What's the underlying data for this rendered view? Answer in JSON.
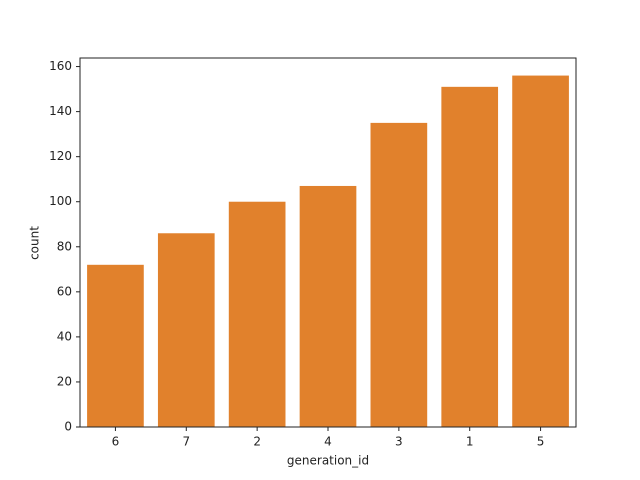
{
  "chart_data": {
    "type": "bar",
    "x_label": "generation_id",
    "y_label": "count",
    "categories": [
      "6",
      "7",
      "2",
      "4",
      "3",
      "1",
      "5"
    ],
    "values": [
      72,
      86,
      100,
      107,
      135,
      151,
      156
    ],
    "color": "#e1812c",
    "ylim": [
      0,
      163.8
    ],
    "yticks": [
      0,
      20,
      40,
      60,
      80,
      100,
      120,
      140,
      160
    ],
    "grid": false
  }
}
